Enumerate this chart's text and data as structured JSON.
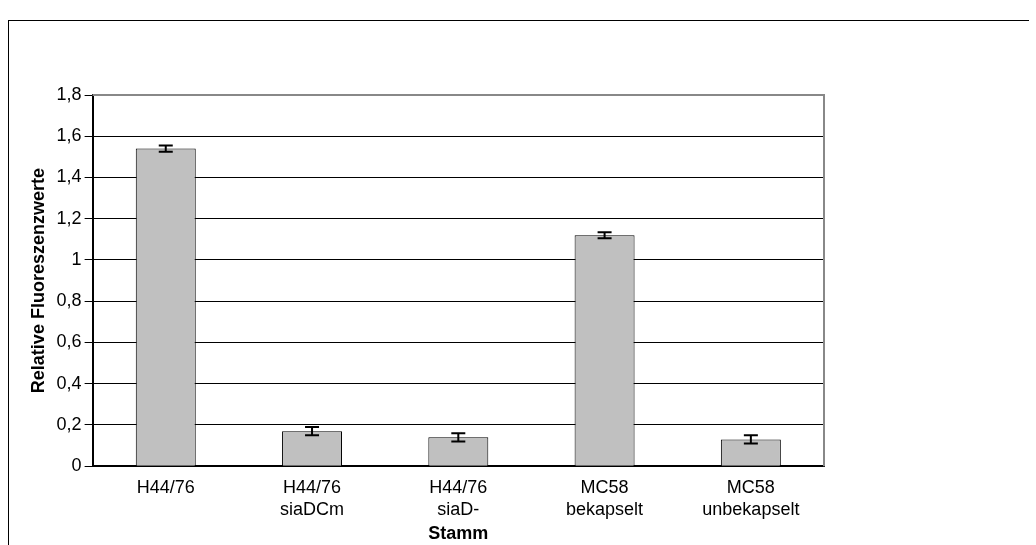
{
  "chart_data": {
    "type": "bar",
    "categories": [
      "H44/76",
      "H44/76\nsiaDCm",
      "H44/76\nsiaD-",
      "MC58\nbekapselt",
      "MC58\nunbekapselt"
    ],
    "values": [
      1.54,
      0.17,
      0.14,
      1.12,
      0.13
    ],
    "errors": [
      0.015,
      0.02,
      0.02,
      0.015,
      0.02
    ],
    "color": "#c0c0c0",
    "xlabel": "Stamm",
    "ylabel": "Relative Fluoreszenzwerte",
    "ylim": [
      0,
      1.8
    ],
    "yticks": [
      0,
      {
        "value": 0.2,
        "label": "0,2"
      },
      {
        "value": 0.4,
        "label": "0,4"
      },
      {
        "value": 0.6,
        "label": "0,6"
      },
      {
        "value": 0.8,
        "label": "0,8"
      },
      1,
      {
        "value": 1.2,
        "label": "1,2"
      },
      {
        "value": 1.4,
        "label": "1,4"
      },
      {
        "value": 1.6,
        "label": "1,6"
      },
      {
        "value": 1.8,
        "label": "1,8"
      }
    ],
    "grid": "y",
    "legend": false
  }
}
